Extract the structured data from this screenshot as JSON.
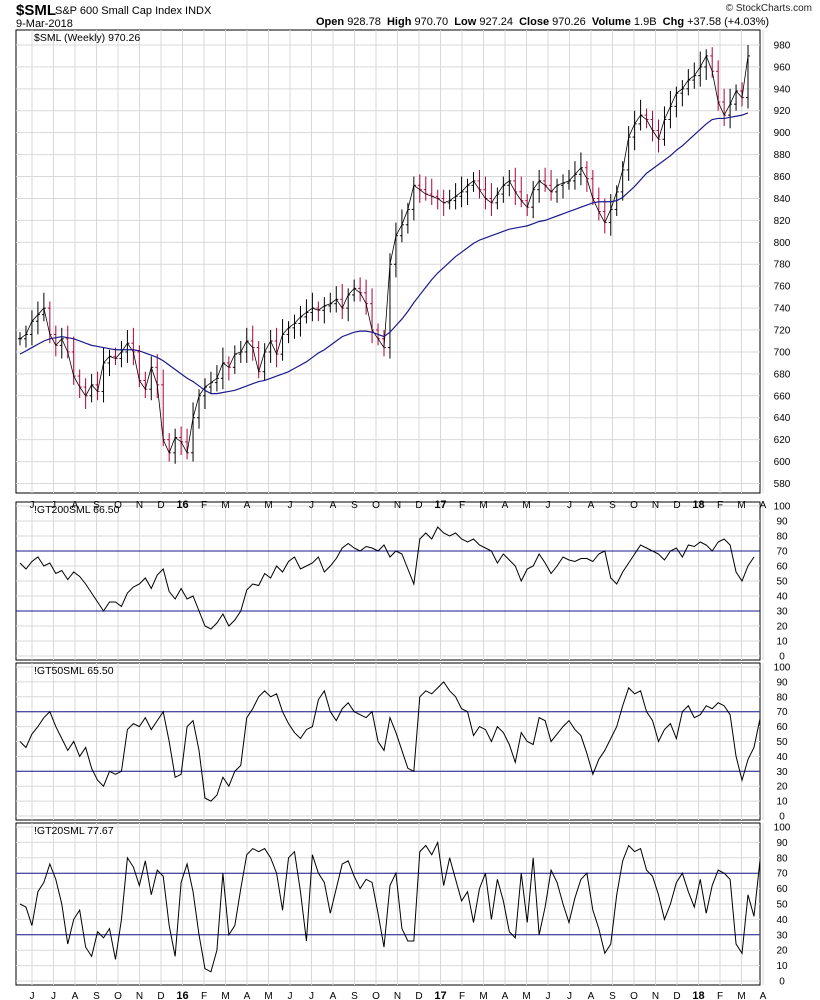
{
  "header": {
    "symbol": "$SML",
    "name": "S&P 600 Small Cap Index",
    "exchange": "INDX",
    "brand": "© StockCharts.com",
    "date": "9-Mar-2018",
    "open_label": "Open",
    "open": "928.78",
    "high_label": "High",
    "high": "970.70",
    "low_label": "Low",
    "low": "927.24",
    "close_label": "Close",
    "close": "970.26",
    "volume_label": "Volume",
    "volume": "1.9B",
    "chg_label": "Chg",
    "chg": "+37.58 (+4.03%)"
  },
  "colors": {
    "up": "#000000",
    "down": "#b0003a",
    "ma": "#1a1a8c",
    "ref": "#1a1a8c",
    "grid": "#d9d9d9",
    "line": "#000000"
  },
  "chart_data": [
    {
      "type": "line",
      "title": "$SML (Weekly) 970.26",
      "series_style": "hlc-bars with moving average",
      "x_ticks": [
        "J",
        "J",
        "A",
        "S",
        "O",
        "N",
        "D",
        "16",
        "F",
        "M",
        "A",
        "M",
        "J",
        "J",
        "A",
        "S",
        "O",
        "N",
        "D",
        "17",
        "F",
        "M",
        "A",
        "M",
        "J",
        "J",
        "A",
        "S",
        "O",
        "N",
        "D",
        "18",
        "F",
        "M",
        "A"
      ],
      "ylim": [
        575,
        990
      ],
      "y_ticks": [
        580,
        600,
        620,
        640,
        660,
        680,
        700,
        720,
        740,
        760,
        780,
        800,
        820,
        840,
        860,
        880,
        900,
        920,
        940,
        960,
        980
      ],
      "close": [
        712,
        716,
        728,
        734,
        740,
        716,
        706,
        712,
        700,
        678,
        668,
        660,
        670,
        664,
        690,
        696,
        694,
        700,
        708,
        700,
        674,
        666,
        686,
        670,
        620,
        608,
        622,
        618,
        608,
        640,
        660,
        668,
        672,
        676,
        690,
        686,
        698,
        700,
        710,
        704,
        682,
        700,
        710,
        698,
        716,
        722,
        726,
        732,
        736,
        740,
        738,
        742,
        744,
        748,
        740,
        752,
        758,
        754,
        744,
        720,
        712,
        704,
        780,
        806,
        816,
        830,
        852,
        848,
        844,
        842,
        840,
        836,
        838,
        842,
        846,
        852,
        856,
        848,
        840,
        836,
        844,
        852,
        856,
        846,
        838,
        832,
        848,
        856,
        852,
        846,
        852,
        854,
        856,
        862,
        868,
        858,
        840,
        828,
        818,
        830,
        846,
        866,
        896,
        908,
        916,
        912,
        902,
        894,
        912,
        924,
        936,
        940,
        948,
        952,
        960,
        970,
        956,
        928,
        916,
        926,
        938,
        932,
        970
      ],
      "ma": [
        698,
        701,
        704,
        707,
        710,
        712,
        713,
        714,
        713,
        712,
        710,
        708,
        706,
        705,
        704,
        703,
        702,
        702,
        702,
        702,
        701,
        699,
        697,
        695,
        692,
        688,
        684,
        680,
        676,
        673,
        669,
        665,
        662,
        662,
        663,
        664,
        665,
        667,
        669,
        671,
        673,
        674,
        676,
        678,
        680,
        682,
        685,
        688,
        691,
        695,
        699,
        702,
        706,
        710,
        714,
        716,
        718,
        719,
        719,
        718,
        716,
        714,
        718,
        724,
        730,
        737,
        745,
        752,
        759,
        766,
        772,
        777,
        782,
        787,
        791,
        795,
        799,
        802,
        804,
        806,
        808,
        810,
        812,
        813,
        814,
        815,
        817,
        819,
        820,
        822,
        824,
        826,
        828,
        830,
        832,
        834,
        836,
        837,
        837,
        837,
        838,
        841,
        846,
        851,
        857,
        863,
        867,
        871,
        875,
        879,
        884,
        888,
        893,
        898,
        903,
        908,
        912,
        913,
        913,
        914,
        915,
        916,
        918
      ],
      "bars_meta": {
        "count": 123
      }
    },
    {
      "type": "line",
      "title": "!GT200SML 66.50",
      "ylim": [
        0,
        100
      ],
      "y_ticks": [
        0,
        10,
        20,
        30,
        40,
        50,
        60,
        70,
        80,
        90,
        100
      ],
      "ref_lines": [
        30,
        70
      ],
      "values": [
        62,
        58,
        63,
        66,
        60,
        62,
        55,
        57,
        51,
        56,
        53,
        48,
        42,
        36,
        30,
        36,
        36,
        33,
        42,
        46,
        48,
        52,
        45,
        54,
        58,
        43,
        38,
        45,
        38,
        40,
        30,
        20,
        18,
        22,
        28,
        20,
        24,
        30,
        44,
        48,
        47,
        55,
        52,
        60,
        56,
        63,
        66,
        58,
        60,
        62,
        66,
        56,
        60,
        65,
        72,
        75,
        72,
        70,
        73,
        72,
        70,
        74,
        66,
        70,
        68,
        58,
        48,
        78,
        82,
        78,
        86,
        82,
        80,
        82,
        78,
        76,
        78,
        74,
        72,
        70,
        62,
        68,
        64,
        60,
        50,
        58,
        60,
        68,
        62,
        55,
        60,
        66,
        64,
        63,
        65,
        65,
        63,
        68,
        70,
        52,
        48,
        56,
        62,
        68,
        74,
        72,
        70,
        68,
        64,
        70,
        72,
        66,
        74,
        73,
        76,
        74,
        70,
        76,
        78,
        74,
        56,
        50,
        60,
        66
      ],
      "ref_labels": []
    },
    {
      "type": "line",
      "title": "!GT50SML 65.50",
      "ylim": [
        0,
        100
      ],
      "y_ticks": [
        0,
        10,
        20,
        30,
        40,
        50,
        60,
        70,
        80,
        90,
        100
      ],
      "ref_lines": [
        30,
        70
      ],
      "values": [
        50,
        46,
        55,
        60,
        66,
        70,
        60,
        52,
        44,
        50,
        40,
        46,
        32,
        24,
        20,
        30,
        28,
        30,
        58,
        62,
        60,
        66,
        58,
        64,
        70,
        50,
        26,
        28,
        60,
        64,
        44,
        12,
        10,
        14,
        26,
        20,
        30,
        34,
        66,
        72,
        80,
        84,
        80,
        82,
        70,
        62,
        56,
        52,
        58,
        60,
        78,
        84,
        70,
        64,
        72,
        76,
        70,
        68,
        66,
        70,
        50,
        44,
        66,
        56,
        44,
        32,
        30,
        80,
        84,
        82,
        86,
        90,
        84,
        80,
        72,
        70,
        54,
        60,
        58,
        50,
        60,
        56,
        48,
        36,
        56,
        50,
        48,
        66,
        64,
        50,
        55,
        60,
        64,
        58,
        54,
        42,
        28,
        38,
        44,
        52,
        60,
        74,
        86,
        82,
        84,
        70,
        64,
        50,
        58,
        62,
        52,
        70,
        74,
        66,
        68,
        74,
        72,
        76,
        74,
        68,
        40,
        24,
        38,
        46,
        65
      ],
      "ref_labels": []
    },
    {
      "type": "line",
      "title": "!GT20SML 77.67",
      "ylim": [
        0,
        100
      ],
      "y_ticks": [
        0,
        10,
        20,
        30,
        40,
        50,
        60,
        70,
        80,
        90,
        100
      ],
      "ref_lines": [
        30,
        70
      ],
      "values": [
        50,
        48,
        36,
        58,
        64,
        76,
        66,
        50,
        24,
        40,
        46,
        22,
        16,
        32,
        28,
        34,
        14,
        40,
        80,
        74,
        62,
        78,
        56,
        72,
        68,
        36,
        16,
        64,
        76,
        58,
        30,
        8,
        6,
        20,
        70,
        30,
        36,
        60,
        82,
        86,
        84,
        86,
        80,
        70,
        46,
        80,
        84,
        58,
        26,
        82,
        70,
        64,
        44,
        60,
        76,
        78,
        68,
        60,
        66,
        64,
        44,
        22,
        62,
        70,
        34,
        26,
        26,
        84,
        88,
        82,
        90,
        62,
        80,
        66,
        52,
        58,
        38,
        60,
        70,
        40,
        66,
        52,
        32,
        28,
        70,
        38,
        80,
        30,
        48,
        72,
        64,
        50,
        38,
        54,
        66,
        70,
        46,
        34,
        18,
        24,
        56,
        78,
        88,
        84,
        86,
        72,
        68,
        56,
        40,
        50,
        64,
        70,
        58,
        48,
        66,
        44,
        62,
        72,
        70,
        66,
        24,
        18,
        56,
        42,
        78
      ],
      "ref_labels": []
    }
  ]
}
